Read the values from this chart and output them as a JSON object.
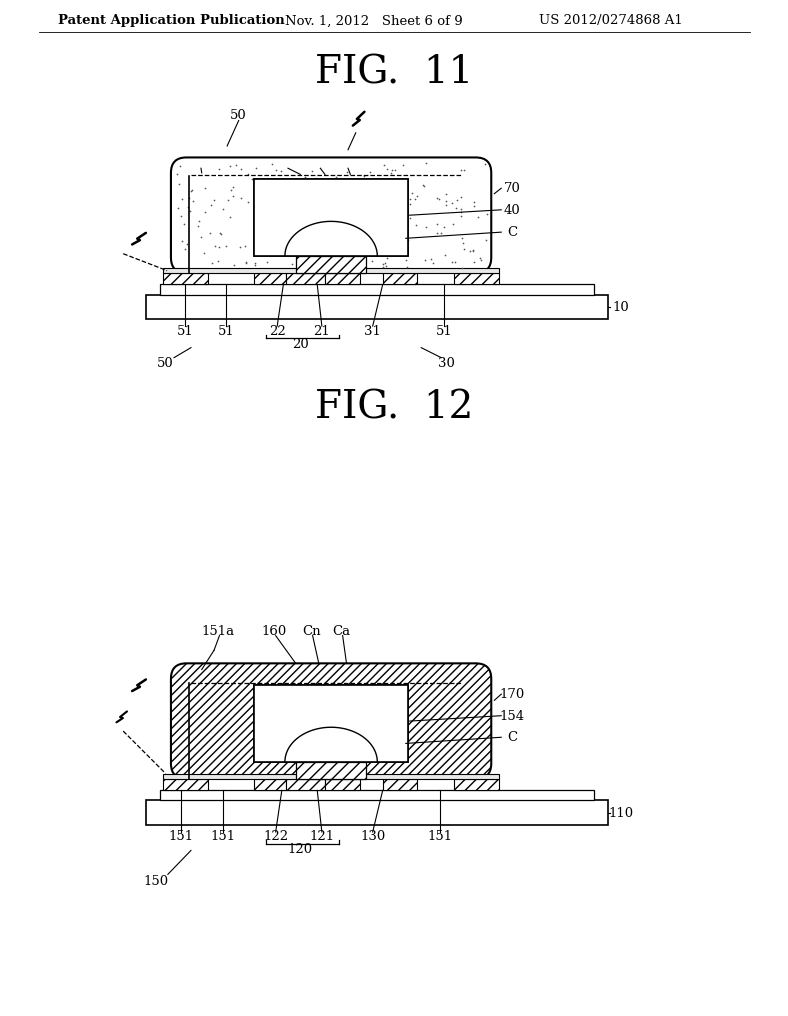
{
  "bg_color": "#ffffff",
  "header_left": "Patent Application Publication",
  "header_mid": "Nov. 1, 2012   Sheet 6 of 9",
  "header_right": "US 2012/0274868 A1",
  "fig11_title": "FIG.  11",
  "fig12_title": "FIG.  12"
}
